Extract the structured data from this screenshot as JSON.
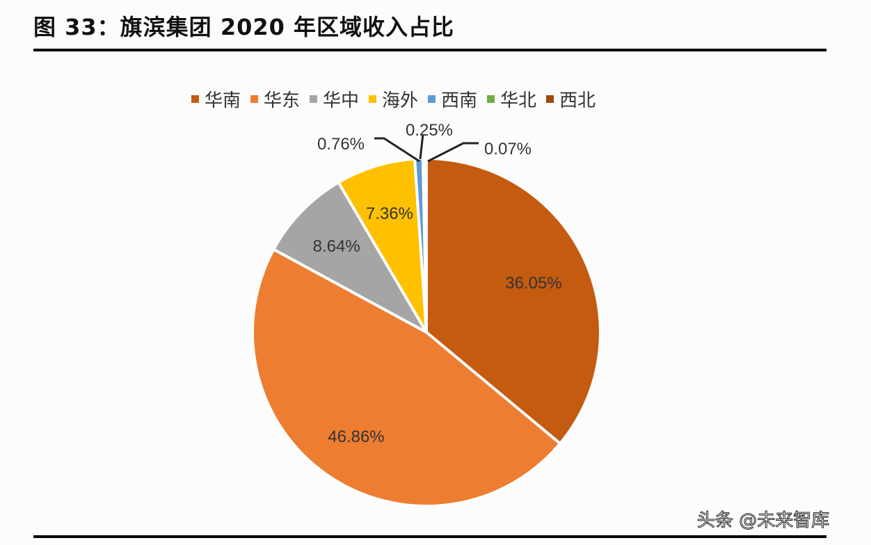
{
  "title": "图 33：旗滨集团 2020 年区域收入占比",
  "watermark": "头条 @未来智库",
  "chart_data": {
    "type": "pie",
    "title": "图 33：旗滨集团 2020 年区域收入占比",
    "legend_position": "top",
    "start": "12 o'clock, clockwise",
    "categories": [
      "华南",
      "华东",
      "华中",
      "海外",
      "西南",
      "华北",
      "西北"
    ],
    "values": [
      36.05,
      46.86,
      8.64,
      7.36,
      0.76,
      0.25,
      0.07
    ],
    "labels": [
      "36.05%",
      "46.86%",
      "8.64%",
      "7.36%",
      "0.76%",
      "0.25%",
      "0.07%"
    ],
    "colors": [
      "#C55A11",
      "#ED7D31",
      "#A5A5A5",
      "#FFC000",
      "#5B9BD5",
      "#70AD47",
      "#9E480E"
    ]
  }
}
